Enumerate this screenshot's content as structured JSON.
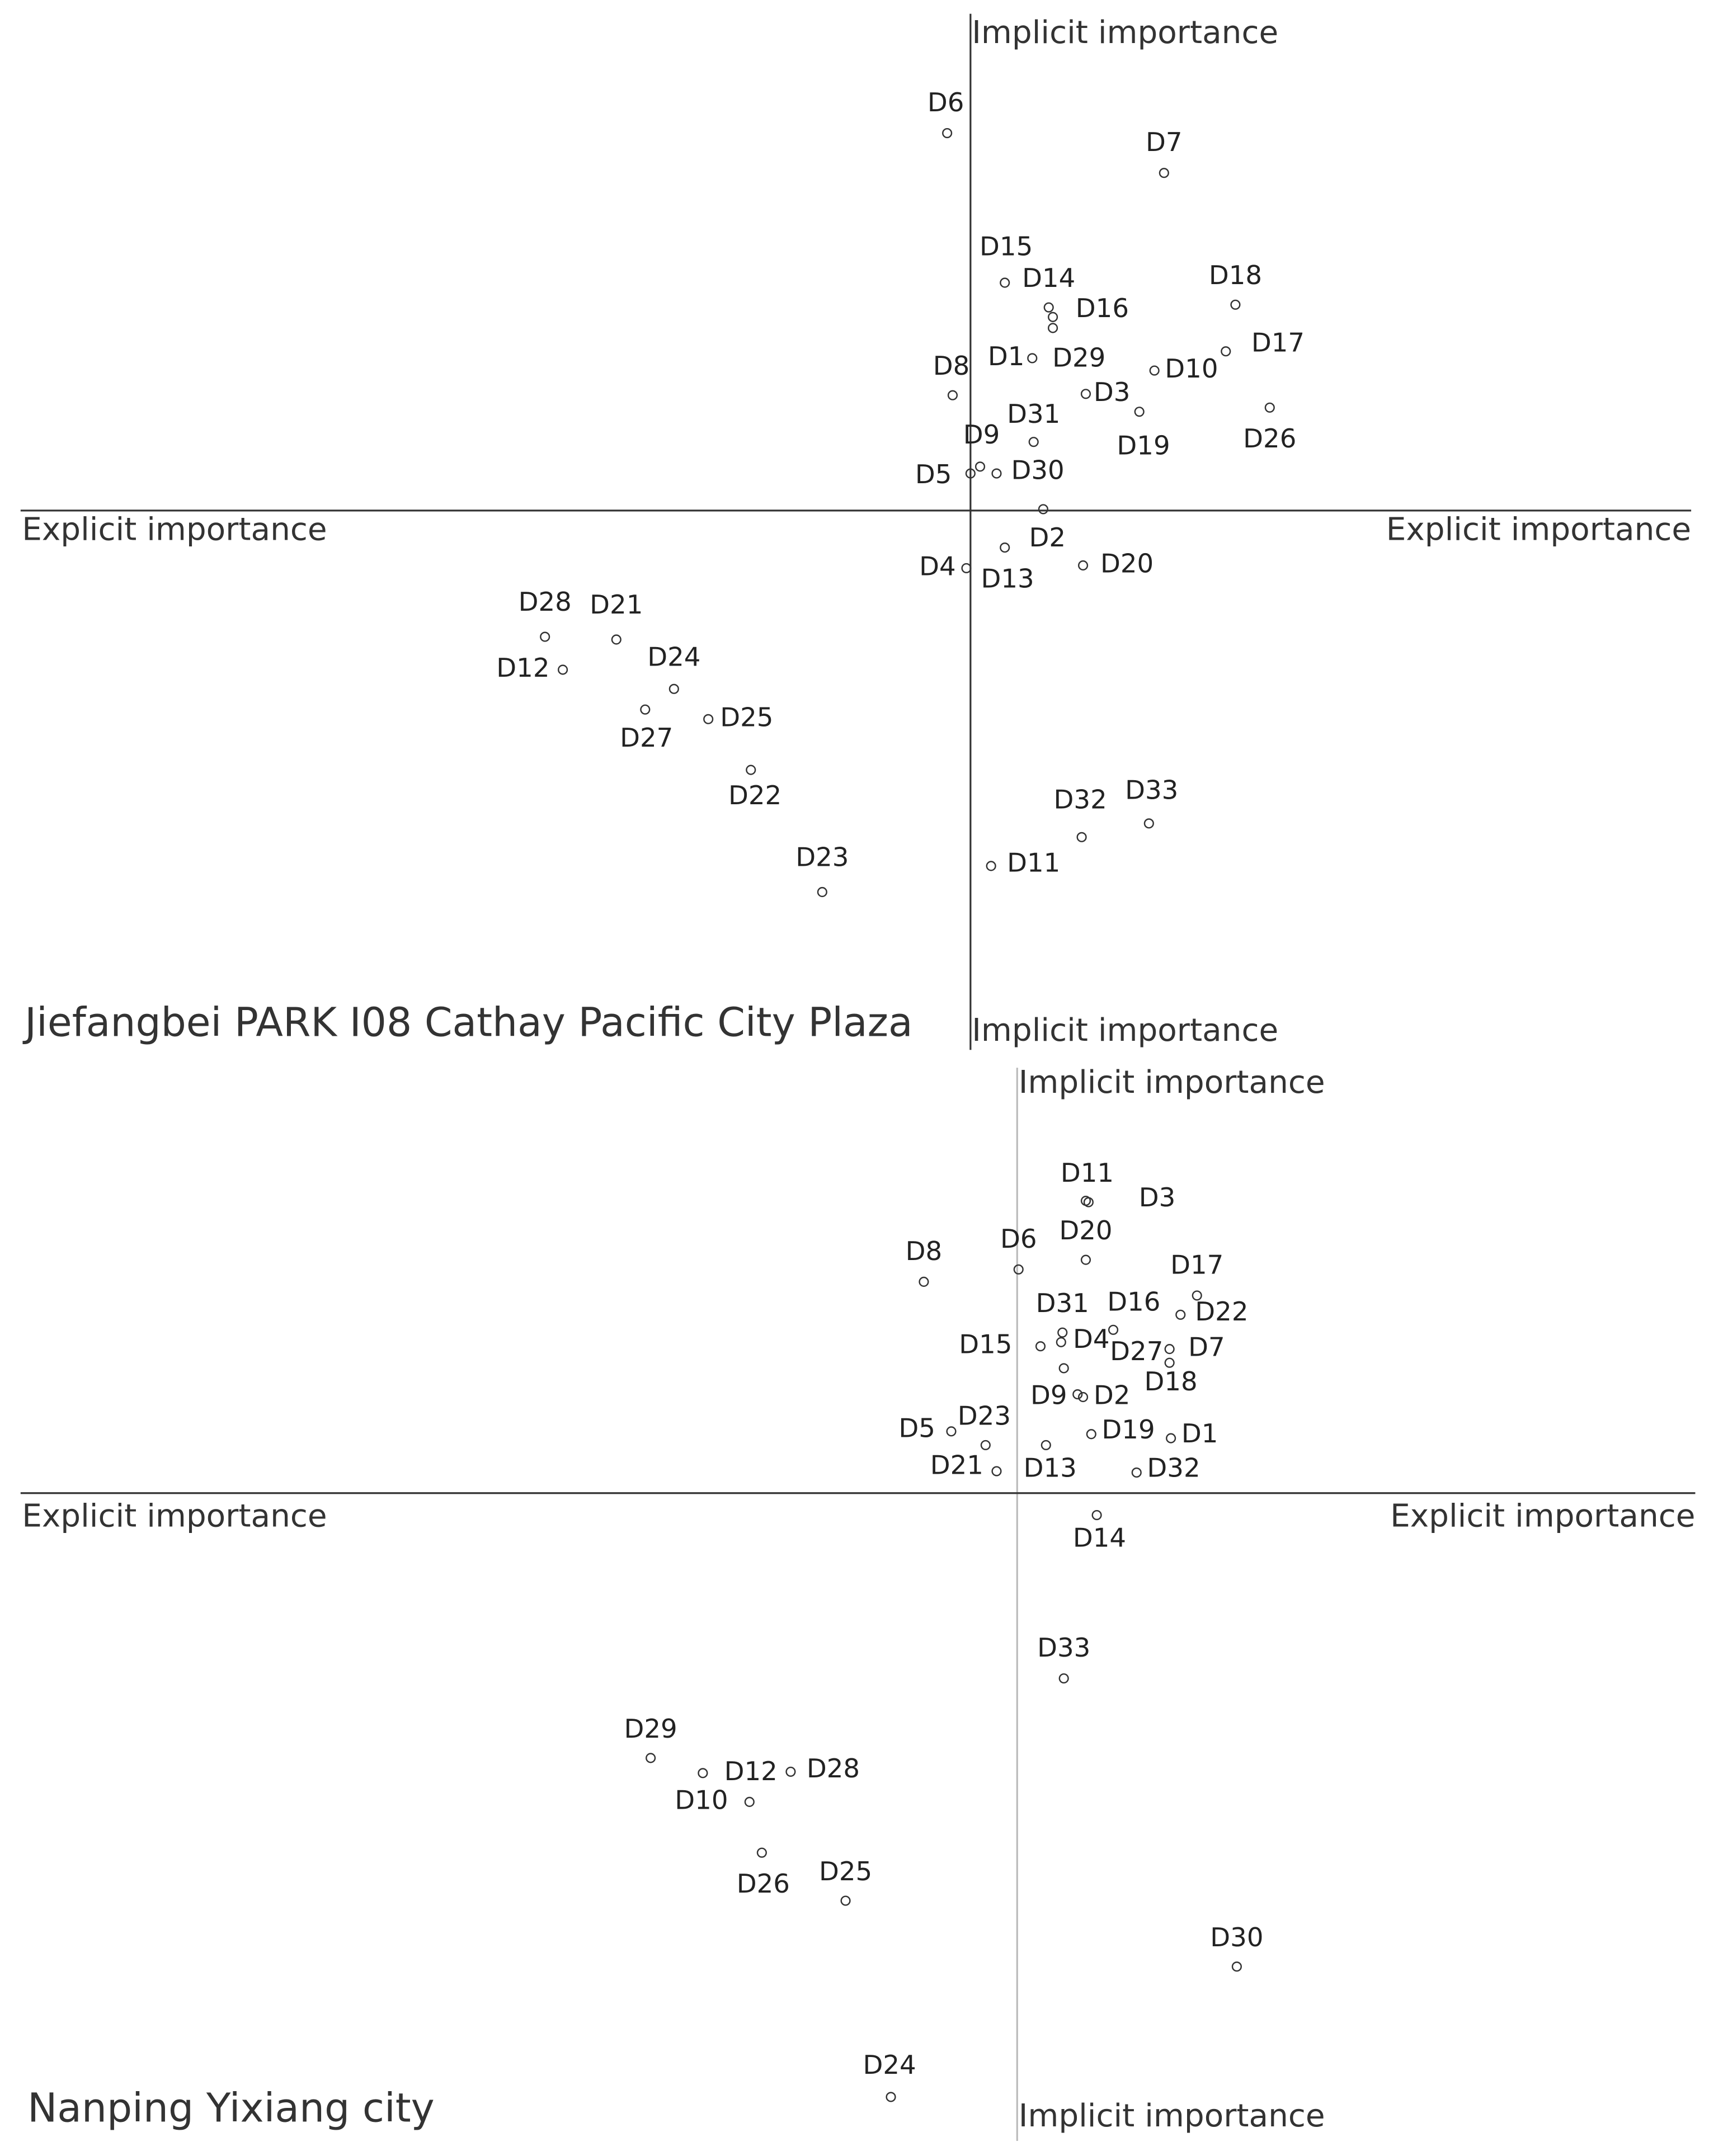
{
  "chart_data": [
    {
      "type": "scatter",
      "title": "Jiefangbei PARK I08 Cathay Pacific City Plaza",
      "x_label": "Explicit importance",
      "y_label": "Implicit importance",
      "color": "#333333",
      "x_axis_color": "#333333",
      "y_axis_color": "#333333",
      "xlim": [
        -692,
        525
      ],
      "ylim": [
        -393,
        362
      ],
      "labels": [
        "D6",
        "D7",
        "D15",
        "D14",
        "D16",
        "D29",
        "D18",
        "D17",
        "D1",
        "D10",
        "D8",
        "D3",
        "D19",
        "D26",
        "D31",
        "D9",
        "D5",
        "D30",
        "D2",
        "D4",
        "D13",
        "D20",
        "D28",
        "D21",
        "D12",
        "D24",
        "D27",
        "D25",
        "D22",
        "D23",
        "D32",
        "D33",
        "D11"
      ],
      "x": [
        -17,
        141,
        25,
        57,
        60,
        60,
        193,
        186,
        45,
        134,
        -13,
        84,
        123,
        218,
        46,
        7,
        0,
        19,
        53,
        -3,
        25,
        82,
        -310,
        -258,
        -297,
        -216,
        -237,
        -191,
        -160,
        -108,
        81,
        130,
        15
      ],
      "values": [
        275,
        246,
        166,
        148,
        141,
        133,
        150,
        116,
        111,
        102,
        84,
        85,
        72,
        75,
        50,
        32,
        27,
        27,
        1,
        -42,
        -27,
        -40,
        -92,
        -94,
        -116,
        -130,
        -145,
        -152,
        -189,
        -278,
        -238,
        -228,
        -259
      ]
    },
    {
      "type": "scatter",
      "title": "Nanping Yixiang city",
      "x_label": "Explicit importance",
      "y_label": "Implicit importance",
      "color": "#333333",
      "x_axis_color": "#333333",
      "y_axis_color": "#bbbbbb",
      "xlim": [
        -726,
        494
      ],
      "ylim": [
        -472,
        310
      ],
      "labels": [
        "D11",
        "D3",
        "D20",
        "D8",
        "D6",
        "D17",
        "D22",
        "D31",
        "D16",
        "D4",
        "D15",
        "D27",
        "D7",
        "D18",
        "D9",
        "D2",
        "D5",
        "D23",
        "D19",
        "D1",
        "D21",
        "D13",
        "D32",
        "D14",
        "D33",
        "D29",
        "D12",
        "D28",
        "D10",
        "D26",
        "D25",
        "D30",
        "D24"
      ],
      "x": [
        50,
        52,
        50,
        -68,
        1,
        131,
        119,
        33,
        70,
        32,
        17,
        34,
        111,
        111,
        44,
        48,
        -48,
        -23,
        54,
        112,
        -15,
        21,
        87,
        58,
        34,
        -267,
        -229,
        -165,
        -195,
        -186,
        -125,
        160,
        -92
      ],
      "values": [
        213,
        212,
        170,
        154,
        163,
        144,
        130,
        117,
        119,
        110,
        107,
        91,
        105,
        95,
        72,
        70,
        45,
        35,
        43,
        40,
        16,
        35,
        15,
        -16,
        -135,
        -193,
        -204,
        -203,
        -225,
        -262,
        -297,
        -345,
        -440
      ]
    }
  ]
}
